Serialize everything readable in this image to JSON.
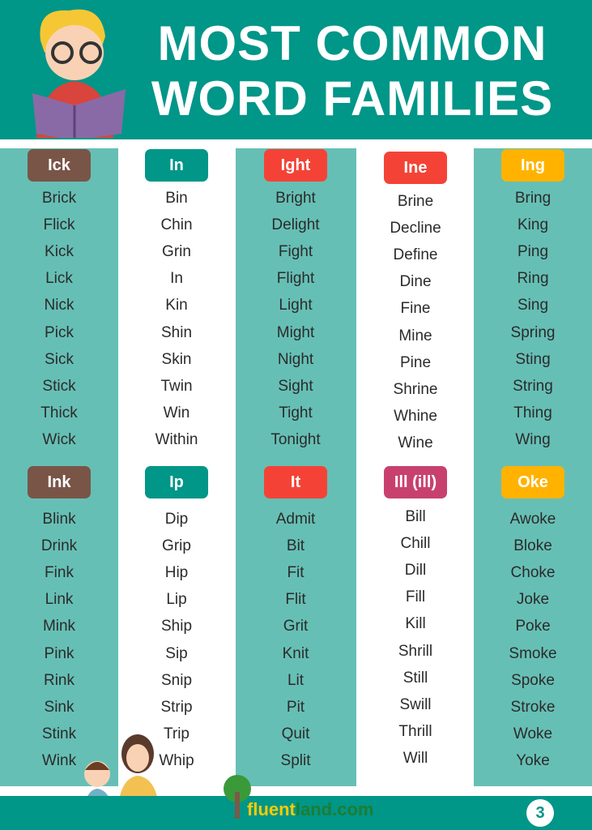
{
  "header": {
    "title_line1": "MOST COMMON",
    "title_line2": "WORD FAMILIES"
  },
  "colors": {
    "teal": "#009688",
    "band": "#66bfb5",
    "brown": "#795548",
    "red": "#f44336",
    "amber": "#ffb300",
    "pink": "#c8416e"
  },
  "families": [
    {
      "label": "Ick",
      "color": "#795548",
      "words": [
        "Brick",
        "Flick",
        "Kick",
        "Lick",
        "Nick",
        "Pick",
        "Sick",
        "Stick",
        "Thick",
        "Wick"
      ]
    },
    {
      "label": "In",
      "color": "#009688",
      "words": [
        "Bin",
        "Chin",
        "Grin",
        "In",
        "Kin",
        "Shin",
        "Skin",
        "Twin",
        "Win",
        "Within"
      ]
    },
    {
      "label": "Ight",
      "color": "#f44336",
      "words": [
        "Bright",
        "Delight",
        "Fight",
        "Flight",
        "Light",
        "Might",
        "Night",
        "Sight",
        "Tight",
        "Tonight"
      ]
    },
    {
      "label": "Ine",
      "color": "#f44336",
      "words": [
        "Brine",
        "Decline",
        "Define",
        "Dine",
        "Fine",
        "Mine",
        "Pine",
        "Shrine",
        "Whine",
        "Wine"
      ]
    },
    {
      "label": "Ing",
      "color": "#ffb300",
      "words": [
        "Bring",
        "King",
        "Ping",
        "Ring",
        "Sing",
        "Spring",
        "Sting",
        "String",
        "Thing",
        "Wing"
      ]
    },
    {
      "label": "Ink",
      "color": "#795548",
      "words": [
        "Blink",
        "Drink",
        "Fink",
        "Link",
        "Mink",
        "Pink",
        "Rink",
        "Sink",
        "Stink",
        "Wink"
      ]
    },
    {
      "label": "Ip",
      "color": "#009688",
      "words": [
        "Dip",
        "Grip",
        "Hip",
        "Lip",
        "Ship",
        "Sip",
        "Snip",
        "Strip",
        "Trip",
        "Whip"
      ]
    },
    {
      "label": "It",
      "color": "#f44336",
      "words": [
        "Admit",
        "Bit",
        "Fit",
        "Flit",
        "Grit",
        "Knit",
        "Lit",
        "Pit",
        "Quit",
        "Split"
      ]
    },
    {
      "label": "Ill (ill)",
      "color": "#c8416e",
      "words": [
        "Bill",
        "Chill",
        "Dill",
        "Fill",
        "Kill",
        "Shrill",
        "Still",
        "Swill",
        "Thrill",
        "Will"
      ]
    },
    {
      "label": "Oke",
      "color": "#ffb300",
      "words": [
        "Awoke",
        "Bloke",
        "Choke",
        "Joke",
        "Poke",
        "Smoke",
        "Spoke",
        "Stroke",
        "Woke",
        "Yoke"
      ]
    }
  ],
  "footer": {
    "logo_part1": "fluent",
    "logo_part2": "land.com",
    "page_number": "3"
  }
}
